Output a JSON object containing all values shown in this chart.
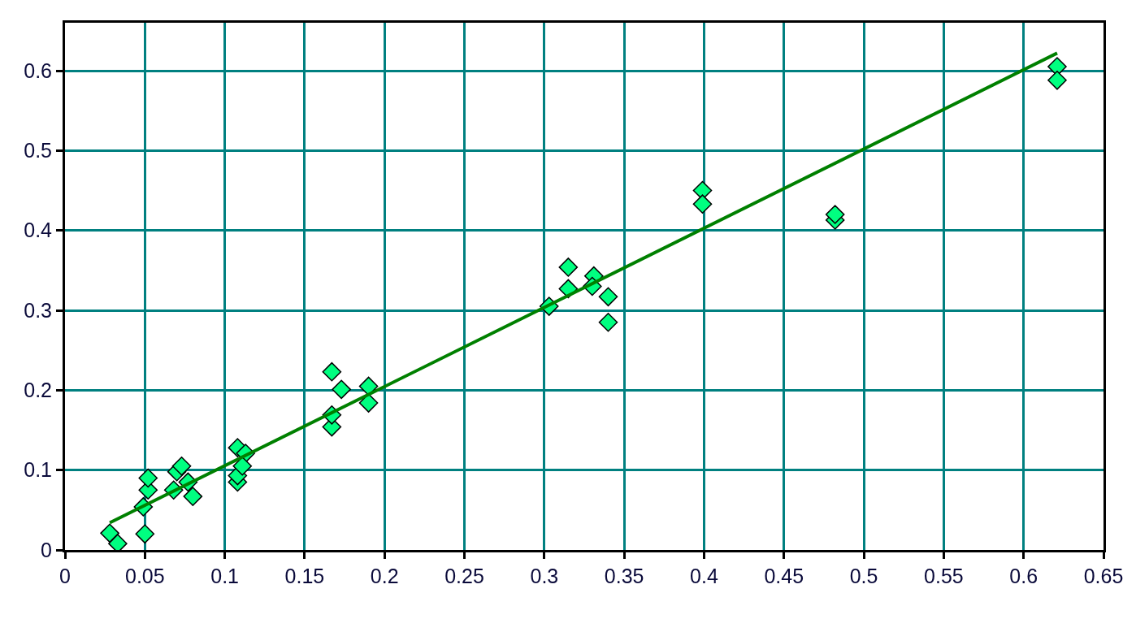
{
  "chart_data": {
    "type": "scatter",
    "grid": true,
    "xlim": [
      0,
      0.65
    ],
    "xticks": [
      0,
      0.05,
      0.1,
      0.15,
      0.2,
      0.25,
      0.3,
      0.35,
      0.4,
      0.45,
      0.5,
      0.55,
      0.6,
      0.65
    ],
    "ylim": [
      0,
      0.66
    ],
    "yticks": [
      0,
      0.1,
      0.2,
      0.3,
      0.4,
      0.5,
      0.6
    ],
    "series": [
      {
        "marker": "diamond",
        "color": "#00ff80",
        "x": [
          0.028,
          0.033,
          0.05,
          0.049,
          0.052,
          0.052,
          0.07,
          0.073,
          0.068,
          0.077,
          0.08,
          0.108,
          0.113,
          0.108,
          0.108,
          0.111,
          0.167,
          0.173,
          0.19,
          0.19,
          0.167,
          0.167,
          0.315,
          0.315,
          0.303,
          0.331,
          0.34,
          0.34,
          0.33,
          0.399,
          0.399,
          0.482,
          0.482,
          0.621,
          0.621
        ],
        "values": [
          0.021,
          0.008,
          0.02,
          0.054,
          0.075,
          0.09,
          0.098,
          0.105,
          0.075,
          0.085,
          0.067,
          0.128,
          0.121,
          0.085,
          0.093,
          0.105,
          0.223,
          0.201,
          0.205,
          0.184,
          0.154,
          0.169,
          0.354,
          0.327,
          0.305,
          0.343,
          0.317,
          0.285,
          0.33,
          0.45,
          0.433,
          0.413,
          0.42,
          0.605,
          0.588
        ]
      },
      {
        "type": "line",
        "marker": "none",
        "color": "#008000",
        "x": [
          0.028,
          0.621
        ],
        "values": [
          0.034,
          0.622
        ]
      }
    ]
  }
}
